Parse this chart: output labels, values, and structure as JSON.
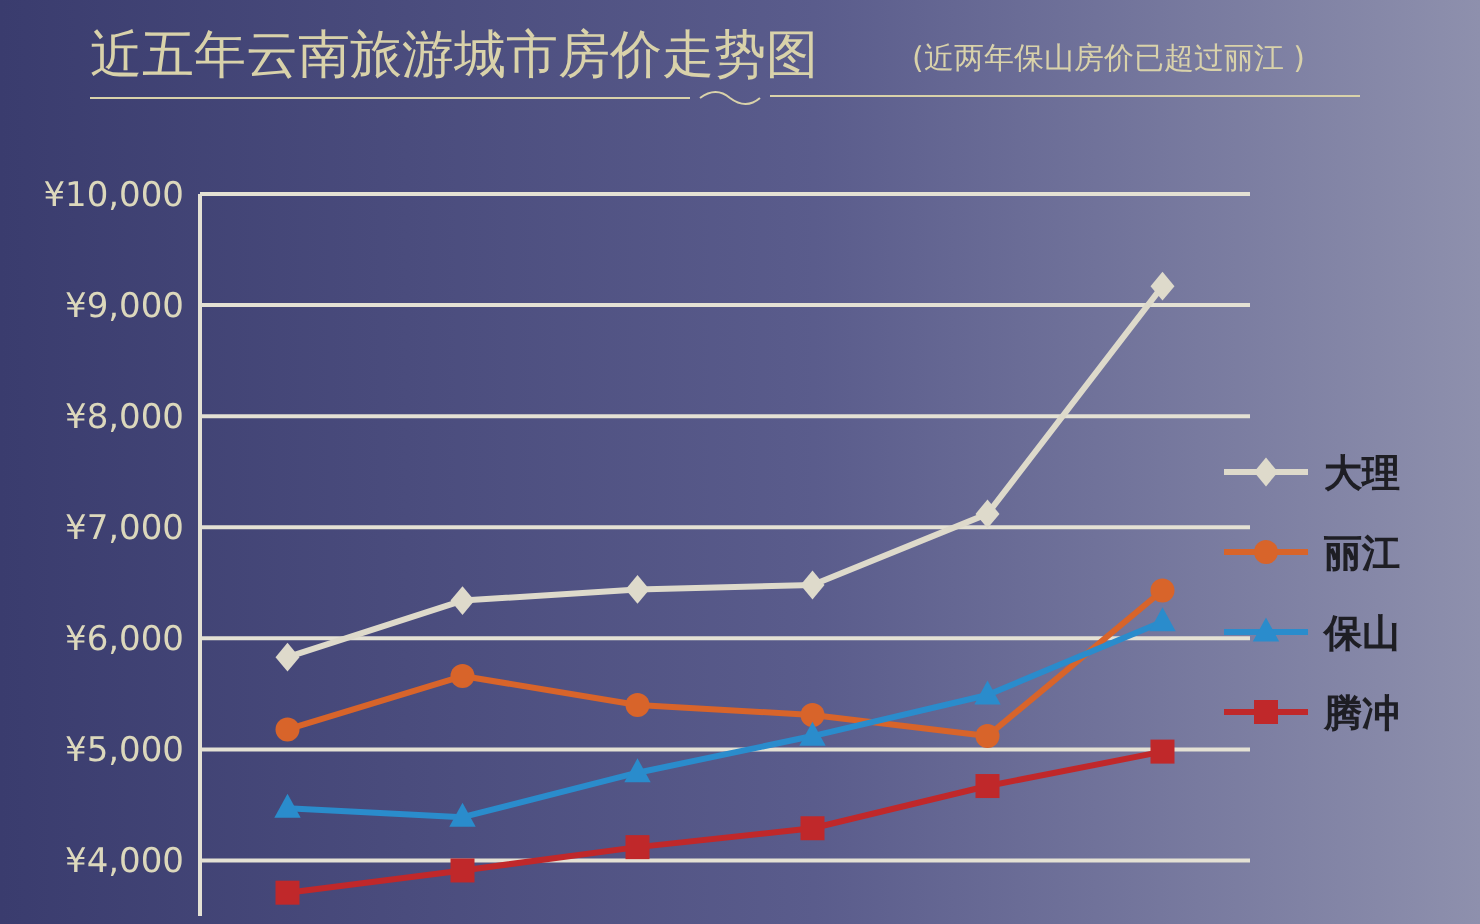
{
  "chart_data": {
    "type": "line",
    "title": "近五年云南旅游城市房价走势图",
    "subtitle": "(近两年保山房价已超过丽江 )",
    "categories": [
      null,
      null,
      null,
      null,
      null,
      null
    ],
    "series": [
      {
        "name": "大理",
        "color": "#dedacb",
        "marker": "diamond",
        "values": [
          5830,
          6340,
          6440,
          6480,
          7120,
          9170
        ]
      },
      {
        "name": "丽江",
        "color": "#d8642a",
        "marker": "circle",
        "values": [
          5180,
          5660,
          5400,
          5310,
          5120,
          6430
        ]
      },
      {
        "name": "保山",
        "color": "#2a8ccc",
        "marker": "triangle",
        "values": [
          4470,
          4390,
          4790,
          5120,
          5490,
          6150
        ]
      },
      {
        "name": "腾冲",
        "color": "#c0282a",
        "marker": "square",
        "values": [
          3710,
          3910,
          4120,
          4290,
          4670,
          4980
        ]
      }
    ],
    "ylim": [
      3500,
      10000
    ],
    "yticks": [
      {
        "value": 4000,
        "label": "¥4,000"
      },
      {
        "value": 5000,
        "label": "¥5,000"
      },
      {
        "value": 6000,
        "label": "¥6,000"
      },
      {
        "value": 7000,
        "label": "¥7,000"
      },
      {
        "value": 8000,
        "label": "¥8,000"
      },
      {
        "value": 9000,
        "label": "¥9,000"
      },
      {
        "value": 10000,
        "label": "¥10,000"
      }
    ],
    "grid": "y",
    "legend": "right",
    "tick_labels": "y",
    "line_style": "solid"
  }
}
